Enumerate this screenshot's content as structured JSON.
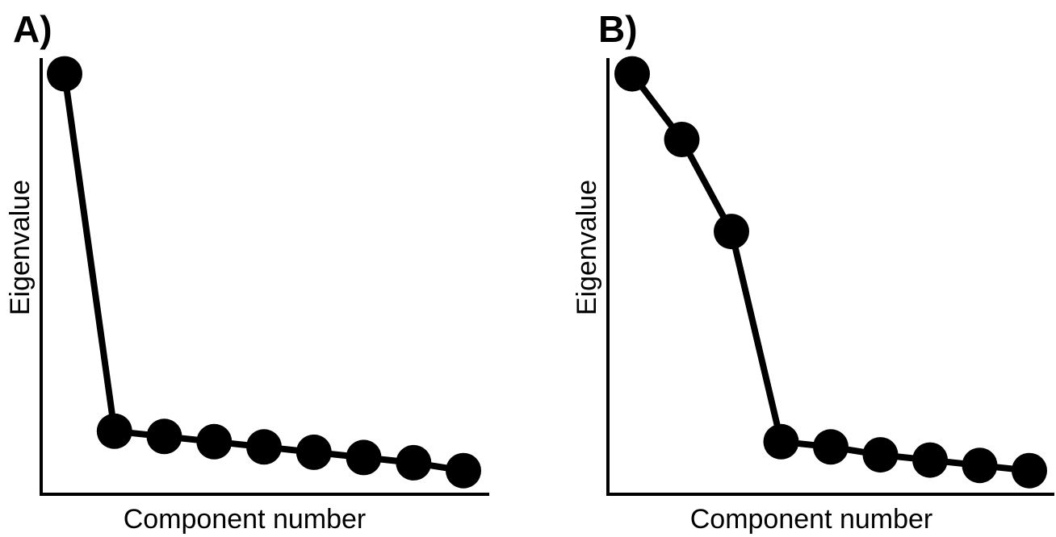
{
  "chart_data": [
    {
      "type": "line",
      "panel_label": "A)",
      "xlabel": "Component number",
      "ylabel": "Eigenvalue",
      "x_ticks_shown": false,
      "y_ticks_shown": false,
      "grid": false,
      "x": [
        1,
        2,
        3,
        4,
        5,
        6,
        7,
        8,
        9
      ],
      "values": [
        8.0,
        1.2,
        1.1,
        1.0,
        0.9,
        0.8,
        0.7,
        0.6,
        0.45
      ],
      "xlim": [
        0.5,
        9.5
      ],
      "ylim": [
        0,
        8.3
      ],
      "line_color": "#000000",
      "marker_color": "#000000"
    },
    {
      "type": "line",
      "panel_label": "B)",
      "xlabel": "Component number",
      "ylabel": "Eigenvalue",
      "x_ticks_shown": false,
      "y_ticks_shown": false,
      "grid": false,
      "x": [
        1,
        2,
        3,
        4,
        5,
        6,
        7,
        8,
        9
      ],
      "values": [
        8.0,
        6.75,
        5.0,
        1.0,
        0.9,
        0.75,
        0.65,
        0.55,
        0.45
      ],
      "xlim": [
        0.5,
        9.5
      ],
      "ylim": [
        0,
        8.3
      ],
      "line_color": "#000000",
      "marker_color": "#000000"
    }
  ]
}
